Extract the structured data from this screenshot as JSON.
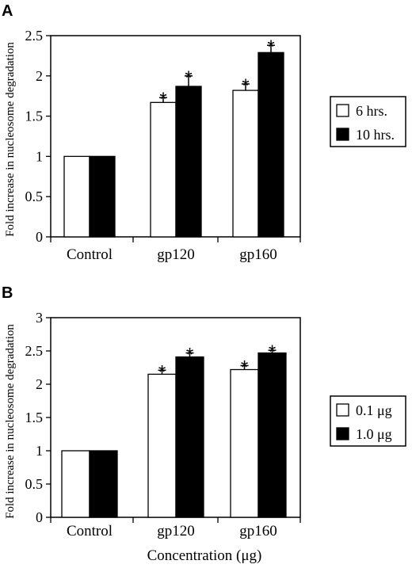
{
  "figure": {
    "x_axis_title": "Concentration (μg)"
  },
  "chart_data": [
    {
      "panel": "A",
      "type": "bar",
      "ylabel": "Fold increase in nucleosome degradation",
      "categories": [
        "Control",
        "gp120",
        "gp160"
      ],
      "yticks": [
        "0",
        "0.5",
        "1",
        "1.5",
        "2",
        "2.5"
      ],
      "ylim": [
        0,
        2.5
      ],
      "series": [
        {
          "name": "6 hrs.",
          "color": "#ffffff",
          "values": [
            1.0,
            1.67,
            1.82
          ],
          "errors": [
            0,
            0.06,
            0.08
          ]
        },
        {
          "name": "10 hrs.",
          "color": "#000000",
          "values": [
            1.0,
            1.87,
            2.29
          ],
          "errors": [
            0,
            0.13,
            0.09
          ]
        }
      ],
      "significance": [
        [
          false,
          true,
          true
        ],
        [
          false,
          true,
          true
        ]
      ],
      "significance_marker": "*"
    },
    {
      "panel": "B",
      "type": "bar",
      "ylabel": "Fold increase in nucleosome degradation",
      "categories": [
        "Control",
        "gp120",
        "gp160"
      ],
      "yticks": [
        "0",
        "0.5",
        "1",
        "1.5",
        "2",
        "2.5",
        "3"
      ],
      "ylim": [
        0,
        3
      ],
      "series": [
        {
          "name": "0.1 μg",
          "color": "#ffffff",
          "values": [
            1.0,
            2.15,
            2.22
          ],
          "errors": [
            0,
            0.06,
            0.06
          ]
        },
        {
          "name": "1.0 μg",
          "color": "#000000",
          "values": [
            1.0,
            2.41,
            2.47
          ],
          "errors": [
            0,
            0.06,
            0.04
          ]
        }
      ],
      "significance": [
        [
          false,
          true,
          true
        ],
        [
          false,
          true,
          true
        ]
      ],
      "significance_marker": "*"
    }
  ]
}
